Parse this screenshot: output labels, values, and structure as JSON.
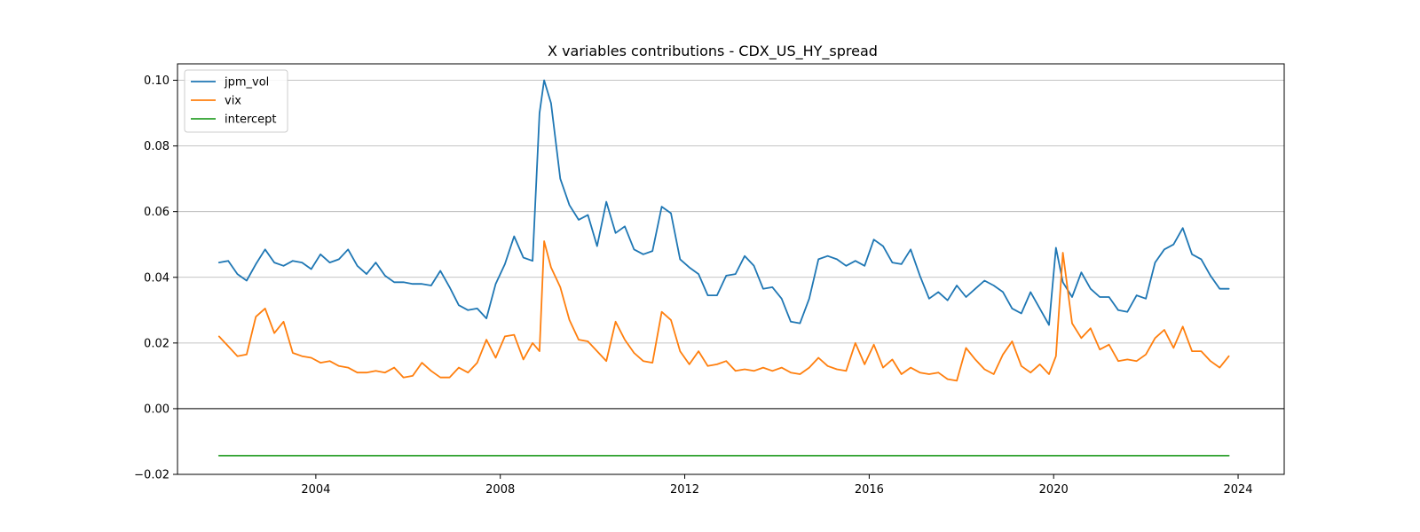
{
  "chart_data": {
    "type": "line",
    "title": "X variables contributions - CDX_US_HY_spread",
    "xlabel": "",
    "ylabel": "",
    "xlim": [
      2001.0,
      2025.0
    ],
    "ylim": [
      -0.02,
      0.105
    ],
    "x_ticks": [
      2004,
      2008,
      2012,
      2016,
      2020,
      2024
    ],
    "x_tick_labels": [
      "2004",
      "2008",
      "2012",
      "2016",
      "2020",
      "2024"
    ],
    "y_ticks": [
      -0.02,
      0.0,
      0.02,
      0.04,
      0.06,
      0.08,
      0.1
    ],
    "y_tick_labels": [
      "−0.02",
      "0.00",
      "0.02",
      "0.04",
      "0.06",
      "0.08",
      "0.10"
    ],
    "grid": "horizontal",
    "zero_line": true,
    "legend_position": "top-left",
    "series": [
      {
        "name": "jpm_vol",
        "color": "#1f77b4",
        "x": [
          2001.9,
          2002.1,
          2002.3,
          2002.5,
          2002.7,
          2002.9,
          2003.1,
          2003.3,
          2003.5,
          2003.7,
          2003.9,
          2004.1,
          2004.3,
          2004.5,
          2004.7,
          2004.9,
          2005.1,
          2005.3,
          2005.5,
          2005.7,
          2005.9,
          2006.1,
          2006.3,
          2006.5,
          2006.7,
          2006.9,
          2007.1,
          2007.3,
          2007.5,
          2007.7,
          2007.9,
          2008.1,
          2008.3,
          2008.5,
          2008.7,
          2008.85,
          2008.95,
          2009.1,
          2009.3,
          2009.5,
          2009.7,
          2009.9,
          2010.1,
          2010.3,
          2010.5,
          2010.7,
          2010.9,
          2011.1,
          2011.3,
          2011.5,
          2011.7,
          2011.9,
          2012.1,
          2012.3,
          2012.5,
          2012.7,
          2012.9,
          2013.1,
          2013.3,
          2013.5,
          2013.7,
          2013.9,
          2014.1,
          2014.3,
          2014.5,
          2014.7,
          2014.9,
          2015.1,
          2015.3,
          2015.5,
          2015.7,
          2015.9,
          2016.1,
          2016.3,
          2016.5,
          2016.7,
          2016.9,
          2017.1,
          2017.3,
          2017.5,
          2017.7,
          2017.9,
          2018.1,
          2018.3,
          2018.5,
          2018.7,
          2018.9,
          2019.1,
          2019.3,
          2019.5,
          2019.7,
          2019.9,
          2020.05,
          2020.2,
          2020.4,
          2020.6,
          2020.8,
          2021.0,
          2021.2,
          2021.4,
          2021.6,
          2021.8,
          2022.0,
          2022.2,
          2022.4,
          2022.6,
          2022.8,
          2023.0,
          2023.2,
          2023.4,
          2023.6,
          2023.8
        ],
        "values": [
          0.0445,
          0.045,
          0.041,
          0.039,
          0.044,
          0.0485,
          0.0445,
          0.0435,
          0.045,
          0.0445,
          0.0425,
          0.047,
          0.0445,
          0.0455,
          0.0485,
          0.0435,
          0.041,
          0.0445,
          0.0405,
          0.0385,
          0.0385,
          0.038,
          0.038,
          0.0375,
          0.042,
          0.037,
          0.0315,
          0.03,
          0.0305,
          0.0275,
          0.038,
          0.044,
          0.0525,
          0.046,
          0.045,
          0.09,
          0.1,
          0.093,
          0.07,
          0.062,
          0.0575,
          0.059,
          0.0495,
          0.063,
          0.0535,
          0.0555,
          0.0485,
          0.047,
          0.048,
          0.0615,
          0.0595,
          0.0455,
          0.043,
          0.041,
          0.0345,
          0.0345,
          0.0405,
          0.041,
          0.0465,
          0.0435,
          0.0365,
          0.037,
          0.0335,
          0.0265,
          0.026,
          0.0335,
          0.0455,
          0.0465,
          0.0455,
          0.0435,
          0.045,
          0.0435,
          0.0515,
          0.0495,
          0.0445,
          0.044,
          0.0485,
          0.0405,
          0.0335,
          0.0355,
          0.033,
          0.0375,
          0.034,
          0.0365,
          0.039,
          0.0375,
          0.0355,
          0.0305,
          0.029,
          0.0355,
          0.0305,
          0.0255,
          0.049,
          0.0385,
          0.034,
          0.0415,
          0.0365,
          0.034,
          0.034,
          0.03,
          0.0295,
          0.0345,
          0.0335,
          0.0445,
          0.0485,
          0.05,
          0.055,
          0.047,
          0.0455,
          0.0405,
          0.0365,
          0.0365
        ]
      },
      {
        "name": "vix",
        "color": "#ff7f0e",
        "x": [
          2001.9,
          2002.1,
          2002.3,
          2002.5,
          2002.7,
          2002.9,
          2003.1,
          2003.3,
          2003.5,
          2003.7,
          2003.9,
          2004.1,
          2004.3,
          2004.5,
          2004.7,
          2004.9,
          2005.1,
          2005.3,
          2005.5,
          2005.7,
          2005.9,
          2006.1,
          2006.3,
          2006.5,
          2006.7,
          2006.9,
          2007.1,
          2007.3,
          2007.5,
          2007.7,
          2007.9,
          2008.1,
          2008.3,
          2008.5,
          2008.7,
          2008.85,
          2008.95,
          2009.1,
          2009.3,
          2009.5,
          2009.7,
          2009.9,
          2010.1,
          2010.3,
          2010.5,
          2010.7,
          2010.9,
          2011.1,
          2011.3,
          2011.5,
          2011.7,
          2011.9,
          2012.1,
          2012.3,
          2012.5,
          2012.7,
          2012.9,
          2013.1,
          2013.3,
          2013.5,
          2013.7,
          2013.9,
          2014.1,
          2014.3,
          2014.5,
          2014.7,
          2014.9,
          2015.1,
          2015.3,
          2015.5,
          2015.7,
          2015.9,
          2016.1,
          2016.3,
          2016.5,
          2016.7,
          2016.9,
          2017.1,
          2017.3,
          2017.5,
          2017.7,
          2017.9,
          2018.1,
          2018.3,
          2018.5,
          2018.7,
          2018.9,
          2019.1,
          2019.3,
          2019.5,
          2019.7,
          2019.9,
          2020.05,
          2020.2,
          2020.4,
          2020.6,
          2020.8,
          2021.0,
          2021.2,
          2021.4,
          2021.6,
          2021.8,
          2022.0,
          2022.2,
          2022.4,
          2022.6,
          2022.8,
          2023.0,
          2023.2,
          2023.4,
          2023.6,
          2023.8
        ],
        "values": [
          0.022,
          0.019,
          0.016,
          0.0165,
          0.028,
          0.0305,
          0.023,
          0.0265,
          0.017,
          0.016,
          0.0155,
          0.014,
          0.0145,
          0.013,
          0.0125,
          0.011,
          0.011,
          0.0115,
          0.011,
          0.0125,
          0.0095,
          0.01,
          0.014,
          0.0115,
          0.0095,
          0.0095,
          0.0125,
          0.011,
          0.014,
          0.021,
          0.0155,
          0.022,
          0.0225,
          0.015,
          0.02,
          0.0175,
          0.051,
          0.043,
          0.037,
          0.027,
          0.021,
          0.0205,
          0.0175,
          0.0145,
          0.0265,
          0.021,
          0.017,
          0.0145,
          0.014,
          0.0295,
          0.027,
          0.0175,
          0.0135,
          0.0175,
          0.013,
          0.0135,
          0.0145,
          0.0115,
          0.012,
          0.0115,
          0.0125,
          0.0115,
          0.0125,
          0.011,
          0.0105,
          0.0125,
          0.0155,
          0.013,
          0.012,
          0.0115,
          0.02,
          0.0135,
          0.0195,
          0.0125,
          0.015,
          0.0105,
          0.0125,
          0.011,
          0.0105,
          0.011,
          0.009,
          0.0085,
          0.0185,
          0.015,
          0.012,
          0.0105,
          0.0165,
          0.0205,
          0.013,
          0.011,
          0.0135,
          0.0105,
          0.016,
          0.0475,
          0.026,
          0.0215,
          0.0245,
          0.018,
          0.0195,
          0.0145,
          0.015,
          0.0145,
          0.0165,
          0.0215,
          0.024,
          0.0185,
          0.025,
          0.0175,
          0.0175,
          0.0145,
          0.0125,
          0.016
        ]
      },
      {
        "name": "intercept",
        "color": "#2ca02c",
        "x": [
          2001.9,
          2023.8
        ],
        "values": [
          -0.0143,
          -0.0143
        ]
      }
    ]
  }
}
